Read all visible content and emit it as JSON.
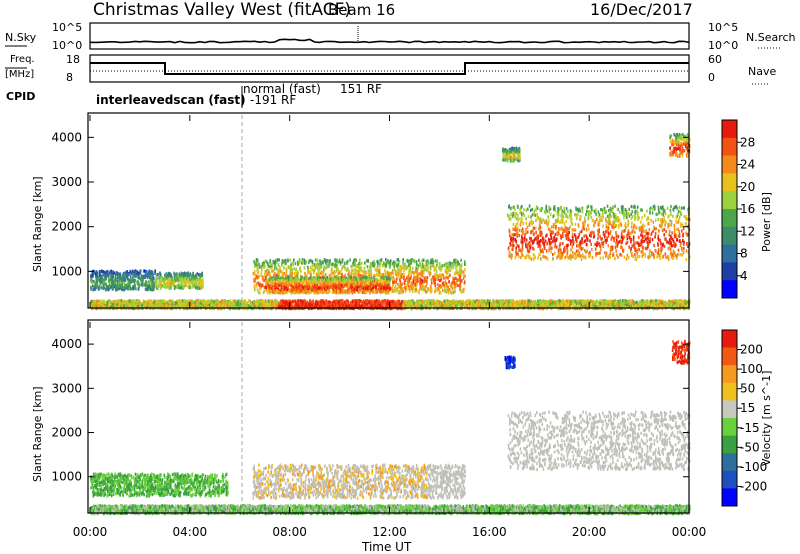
{
  "header": {
    "site": "Christmas Valley West (fitACF)",
    "beam": "Beam 16",
    "date": "16/Dec/2017"
  },
  "strips": {
    "nsky_label": "N.Sky",
    "nsky_ticks": [
      "10^5",
      "10^0"
    ],
    "nsearch_label": "N.Search",
    "freq_label_1": "Freq.",
    "freq_label_2": "[MHz]",
    "freq_ticks": [
      "18",
      "8"
    ],
    "nave_label": "Nave",
    "nave_ticks": [
      "60",
      "0"
    ],
    "cpid_label": "CPID",
    "cpid_mode_1": "interleavedscan (fast)",
    "cpid_mode_1_id": "-191 RF",
    "cpid_mode_2": "normal (fast)",
    "cpid_mode_2_id": "151 RF"
  },
  "colors": {
    "power_scale": [
      "#0000ff",
      "#1f3fa6",
      "#2e6f9e",
      "#3c8c6a",
      "#4fa64a",
      "#9bd13c",
      "#e8c21c",
      "#f58a1c",
      "#f25214",
      "#e61a0f"
    ],
    "velocity_scale": [
      "#0000ff",
      "#1e4fbf",
      "#2e6f9e",
      "#3aa040",
      "#6ad13c",
      "#c8c8c0",
      "#f0c020",
      "#f59a1c",
      "#f25a14",
      "#e61a0f"
    ],
    "ground_scatter": "#c0c0b8"
  },
  "chart_data": [
    {
      "type": "heatmap",
      "panel": "power",
      "ylabel": "Slant Range [km]",
      "colorbar_label": "Power [dB]",
      "colorbar_ticks": [
        "28",
        "24",
        "20",
        "16",
        "12",
        "8",
        "4"
      ],
      "yticks": [
        "1000",
        "2000",
        "3000",
        "4000"
      ],
      "xlim": [
        0,
        24
      ],
      "ylim": [
        180,
        4500
      ],
      "regions": [
        {
          "t": [
            0.0,
            2.6
          ],
          "r": [
            620,
            1050
          ],
          "level": "low-mid"
        },
        {
          "t": [
            2.6,
            4.5
          ],
          "r": [
            650,
            1000
          ],
          "level": "mid"
        },
        {
          "t": [
            6.5,
            15.0
          ],
          "r": [
            550,
            1300
          ],
          "level": "mid-high"
        },
        {
          "t": [
            7.0,
            12.0
          ],
          "r": [
            550,
            900
          ],
          "level": "high"
        },
        {
          "t": [
            16.7,
            24.0
          ],
          "r": [
            1300,
            2500
          ],
          "level": "high"
        },
        {
          "t": [
            16.5,
            17.2
          ],
          "r": [
            3500,
            3800
          ],
          "level": "mid"
        },
        {
          "t": [
            23.2,
            24.0
          ],
          "r": [
            3600,
            4100
          ],
          "level": "high"
        }
      ]
    },
    {
      "type": "heatmap",
      "panel": "velocity",
      "ylabel": "Slant Range [km]",
      "colorbar_label": "Velocity [m s^-1]",
      "colorbar_ticks": [
        "200",
        "100",
        "50",
        "15",
        "-15",
        "-50",
        "-100",
        "-200"
      ],
      "yticks": [
        "1000",
        "2000",
        "3000",
        "4000"
      ],
      "xlim": [
        0,
        24
      ],
      "ylim": [
        180,
        4500
      ],
      "regions": [
        {
          "t": [
            0.0,
            5.5
          ],
          "r": [
            600,
            1100
          ],
          "color": "green"
        },
        {
          "t": [
            6.5,
            15.0
          ],
          "r": [
            550,
            1300
          ],
          "color": "grey-orange"
        },
        {
          "t": [
            16.7,
            24.0
          ],
          "r": [
            1200,
            2500
          ],
          "color": "grey"
        },
        {
          "t": [
            23.3,
            24.0
          ],
          "r": [
            3600,
            4100
          ],
          "color": "red"
        },
        {
          "t": [
            16.6,
            17.0
          ],
          "r": [
            3500,
            3750
          ],
          "color": "blue"
        }
      ]
    }
  ],
  "xaxis": {
    "label": "Time UT",
    "ticks": [
      "00:00",
      "04:00",
      "08:00",
      "12:00",
      "16:00",
      "20:00",
      "00:00"
    ]
  }
}
